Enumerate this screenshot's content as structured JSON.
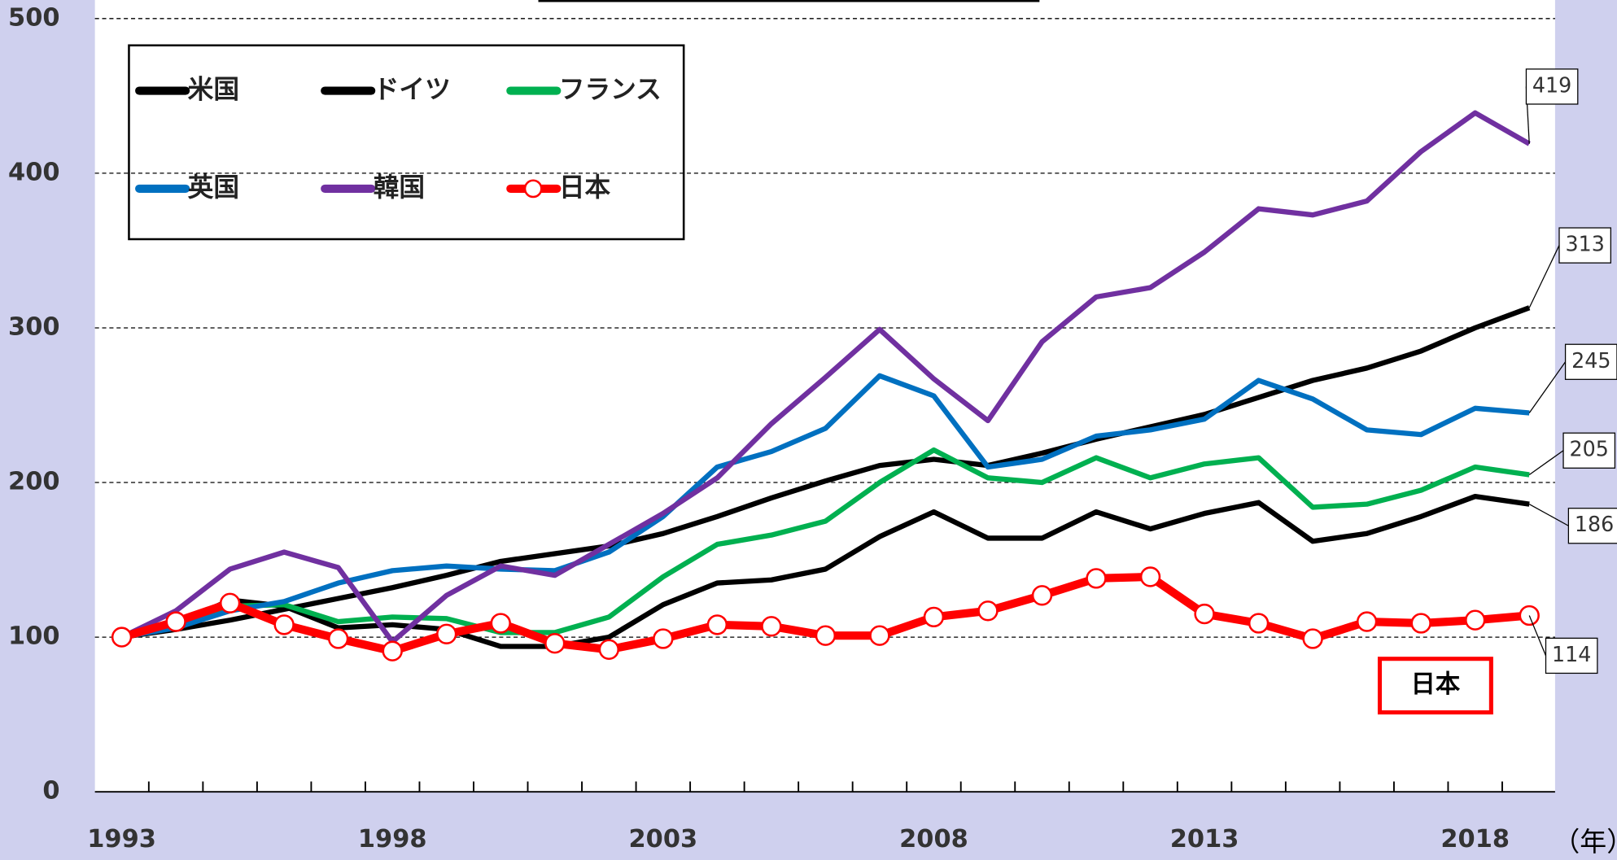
{
  "chart_data": {
    "type": "line",
    "categories": [
      1993,
      null,
      null,
      null,
      null,
      1998,
      null,
      null,
      null,
      null,
      2003,
      null,
      null,
      null,
      null,
      2008,
      null,
      null,
      null,
      null,
      2013,
      null,
      null,
      null,
      null,
      2018,
      null
    ],
    "x_label": "（年）",
    "annotation": "日本",
    "ylim": [
      0,
      500
    ],
    "yticks": [
      0,
      100,
      200,
      300,
      400,
      500
    ],
    "grid": true,
    "series": [
      {
        "name": "米国",
        "color": "#000000",
        "values": [
          100,
          105,
          111,
          118,
          125,
          132,
          140,
          149,
          154,
          159,
          167,
          178,
          190,
          201,
          211,
          215,
          211,
          219,
          228,
          236,
          244,
          255,
          266,
          274,
          285,
          300,
          313
        ]
      },
      {
        "name": "ドイツ",
        "color": "#000000",
        "values": [
          100,
          108,
          124,
          120,
          106,
          108,
          105,
          94,
          94,
          100,
          121,
          135,
          137,
          144,
          165,
          181,
          164,
          164,
          181,
          170,
          180,
          187,
          162,
          167,
          178,
          191,
          186
        ]
      },
      {
        "name": "フランス",
        "color": "#00b050",
        "values": [
          100,
          108,
          120,
          121,
          110,
          113,
          112,
          103,
          103,
          113,
          139,
          160,
          166,
          175,
          200,
          221,
          203,
          200,
          216,
          203,
          212,
          216,
          184,
          186,
          195,
          210,
          205
        ]
      },
      {
        "name": "英国",
        "color": "#0070c0",
        "values": [
          100,
          106,
          117,
          123,
          135,
          143,
          146,
          144,
          143,
          155,
          178,
          210,
          220,
          235,
          269,
          256,
          210,
          215,
          230,
          234,
          241,
          266,
          254,
          234,
          231,
          248,
          245
        ]
      },
      {
        "name": "韓国",
        "color": "#7030a0",
        "values": [
          100,
          117,
          144,
          155,
          145,
          97,
          127,
          146,
          140,
          160,
          180,
          203,
          238,
          268,
          299,
          267,
          240,
          291,
          320,
          326,
          349,
          377,
          373,
          382,
          414,
          439,
          419
        ]
      },
      {
        "name": "日本",
        "color": "#ff0000",
        "values": [
          100,
          110,
          122,
          108,
          99,
          91,
          102,
          109,
          96,
          92,
          99,
          108,
          107,
          101,
          101,
          113,
          117,
          127,
          138,
          139,
          115,
          109,
          99,
          110,
          109,
          111,
          114
        ]
      }
    ]
  }
}
